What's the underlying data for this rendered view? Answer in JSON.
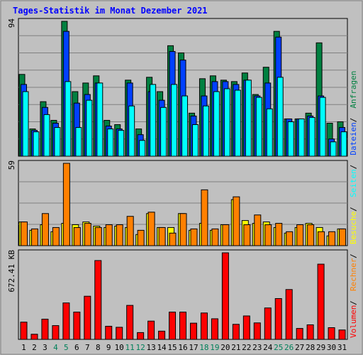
{
  "chart_data": {
    "type": "bar",
    "title": "Tages-Statistik im Monat Dezember 2021",
    "categories": [
      "1",
      "2",
      "3",
      "4",
      "5",
      "6",
      "7",
      "8",
      "9",
      "10",
      "11",
      "12",
      "13",
      "14",
      "15",
      "16",
      "17",
      "18",
      "19",
      "20",
      "21",
      "22",
      "23",
      "24",
      "25",
      "26",
      "27",
      "28",
      "29",
      "30",
      "31"
    ],
    "weekend_days": [
      "4",
      "5",
      "11",
      "12",
      "18",
      "19",
      "25",
      "26"
    ],
    "legend": [
      "Volumen",
      "Rechner",
      "Besuche",
      "Seiten",
      "Dateien",
      "Anfragen"
    ],
    "legend_colors": [
      "#ff0000",
      "#ff8000",
      "#ffff00",
      "#00ffff",
      "#0040ff",
      "#008040"
    ],
    "panels": [
      {
        "name": "top",
        "max_label": "94",
        "ylim": [
          0,
          94
        ],
        "series": [
          {
            "name": "Anfragen",
            "color": "#008040",
            "values": [
              57,
              19,
              38,
              25,
              94,
              45,
              51,
              56,
              25,
              22,
              53,
              19,
              55,
              45,
              77,
              72,
              30,
              54,
              56,
              53,
              52,
              58,
              43,
              62,
              87,
              26,
              26,
              30,
              79,
              23,
              24
            ]
          },
          {
            "name": "Dateien",
            "color": "#0040ff",
            "values": [
              50,
              18,
              34,
              23,
              87,
              37,
              43,
              51,
              21,
              19,
              51,
              15,
              45,
              39,
              73,
              67,
              28,
              42,
              52,
              52,
              50,
              53,
              42,
              51,
              83,
              26,
              26,
              28,
              42,
              12,
              20
            ]
          },
          {
            "name": "Seiten",
            "color": "#00ffff",
            "values": [
              45,
              17,
              29,
              20,
              52,
              20,
              39,
              51,
              19,
              18,
              35,
              11,
              50,
              34,
              50,
              42,
              22,
              35,
              45,
              47,
              46,
              53,
              41,
              33,
              55,
              24,
              26,
              27,
              41,
              10,
              17
            ]
          }
        ]
      },
      {
        "name": "middle",
        "max_label": "59",
        "ylim": [
          0,
          59
        ],
        "series": [
          {
            "name": "Besuche",
            "color": "#ffff00",
            "values": [
              17,
              11,
              15,
              10,
              16,
              15,
              17,
              14,
              13,
              14,
              13,
              8,
              23,
              13,
              13,
              23,
              11,
              16,
              11,
              15,
              33,
              18,
              16,
              17,
              13,
              9,
              13,
              16,
              13,
              7,
              12
            ]
          },
          {
            "name": "Rechner",
            "color": "#ff8000",
            "values": [
              17,
              12,
              23,
              13,
              59,
              13,
              16,
              13,
              15,
              15,
              21,
              11,
              24,
              13,
              9,
              23,
              12,
              40,
              12,
              15,
              35,
              15,
              22,
              15,
              16,
              10,
              15,
              15,
              10,
              10,
              12
            ]
          }
        ]
      },
      {
        "name": "bottom",
        "max_label": "672.41 KB",
        "ylim": [
          0,
          672.41
        ],
        "series": [
          {
            "name": "Volumen",
            "color": "#ff0000",
            "values": [
              134,
              40,
              157,
              107,
              283,
              212,
              335,
              612,
              102,
              94,
              264,
              53,
              142,
              64,
              212,
              212,
              126,
              205,
              160,
              672,
              117,
              182,
              128,
              244,
              317,
              387,
              85,
              113,
              584,
              91,
              73
            ]
          }
        ]
      }
    ]
  }
}
